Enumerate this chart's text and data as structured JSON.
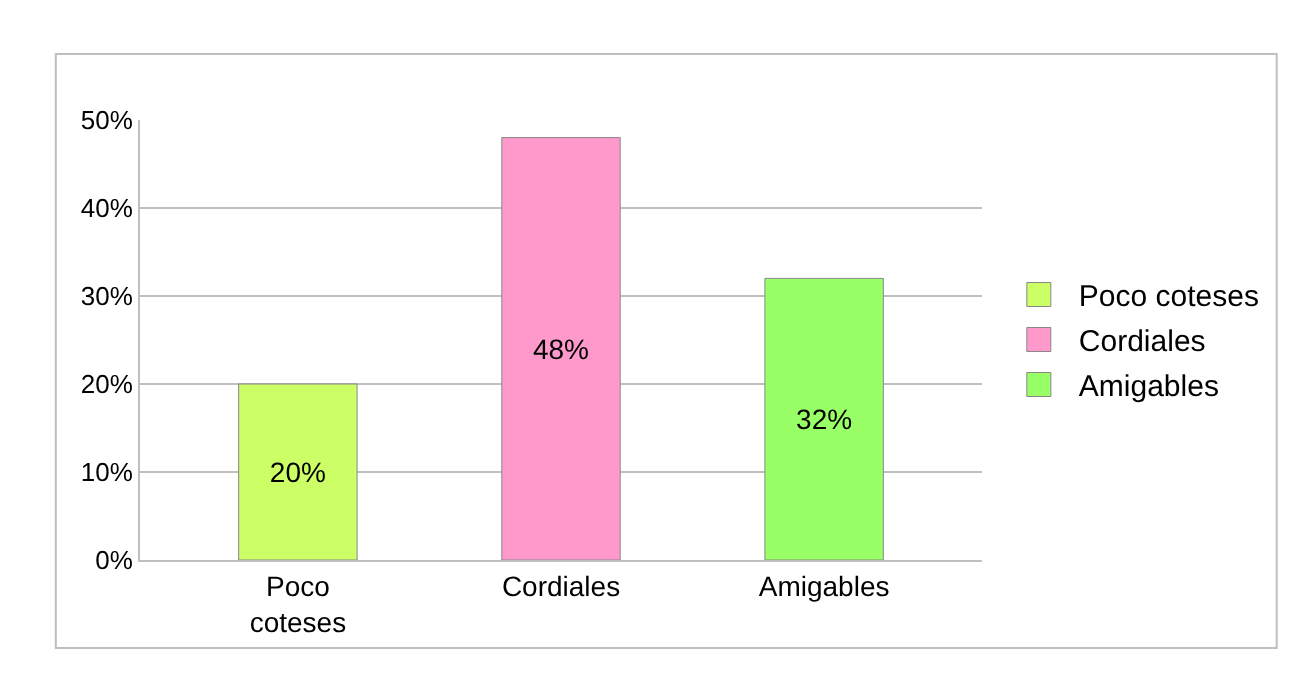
{
  "chart_data": {
    "type": "bar",
    "categories": [
      "Poco coteses",
      "Cordiales",
      "Amigables"
    ],
    "series": [
      {
        "name": "Poco coteses",
        "color": "#ccff66",
        "values": [
          20,
          null,
          null
        ],
        "value_labels": [
          "20%",
          null,
          null
        ]
      },
      {
        "name": "Cordiales",
        "color": "#ff99cc",
        "values": [
          null,
          48,
          null
        ],
        "value_labels": [
          null,
          "48%",
          null
        ]
      },
      {
        "name": "Amigables",
        "color": "#99ff66",
        "values": [
          null,
          null,
          32
        ],
        "value_labels": [
          null,
          null,
          "32%"
        ]
      }
    ],
    "ylim": [
      0,
      50
    ],
    "yticks": [
      {
        "value": 0,
        "label": "0%"
      },
      {
        "value": 10,
        "label": "10%"
      },
      {
        "value": 20,
        "label": "20%"
      },
      {
        "value": 30,
        "label": "30%"
      },
      {
        "value": 40,
        "label": "40%"
      },
      {
        "value": 50,
        "label": "50%"
      }
    ],
    "grid": "y",
    "legend": "right"
  }
}
